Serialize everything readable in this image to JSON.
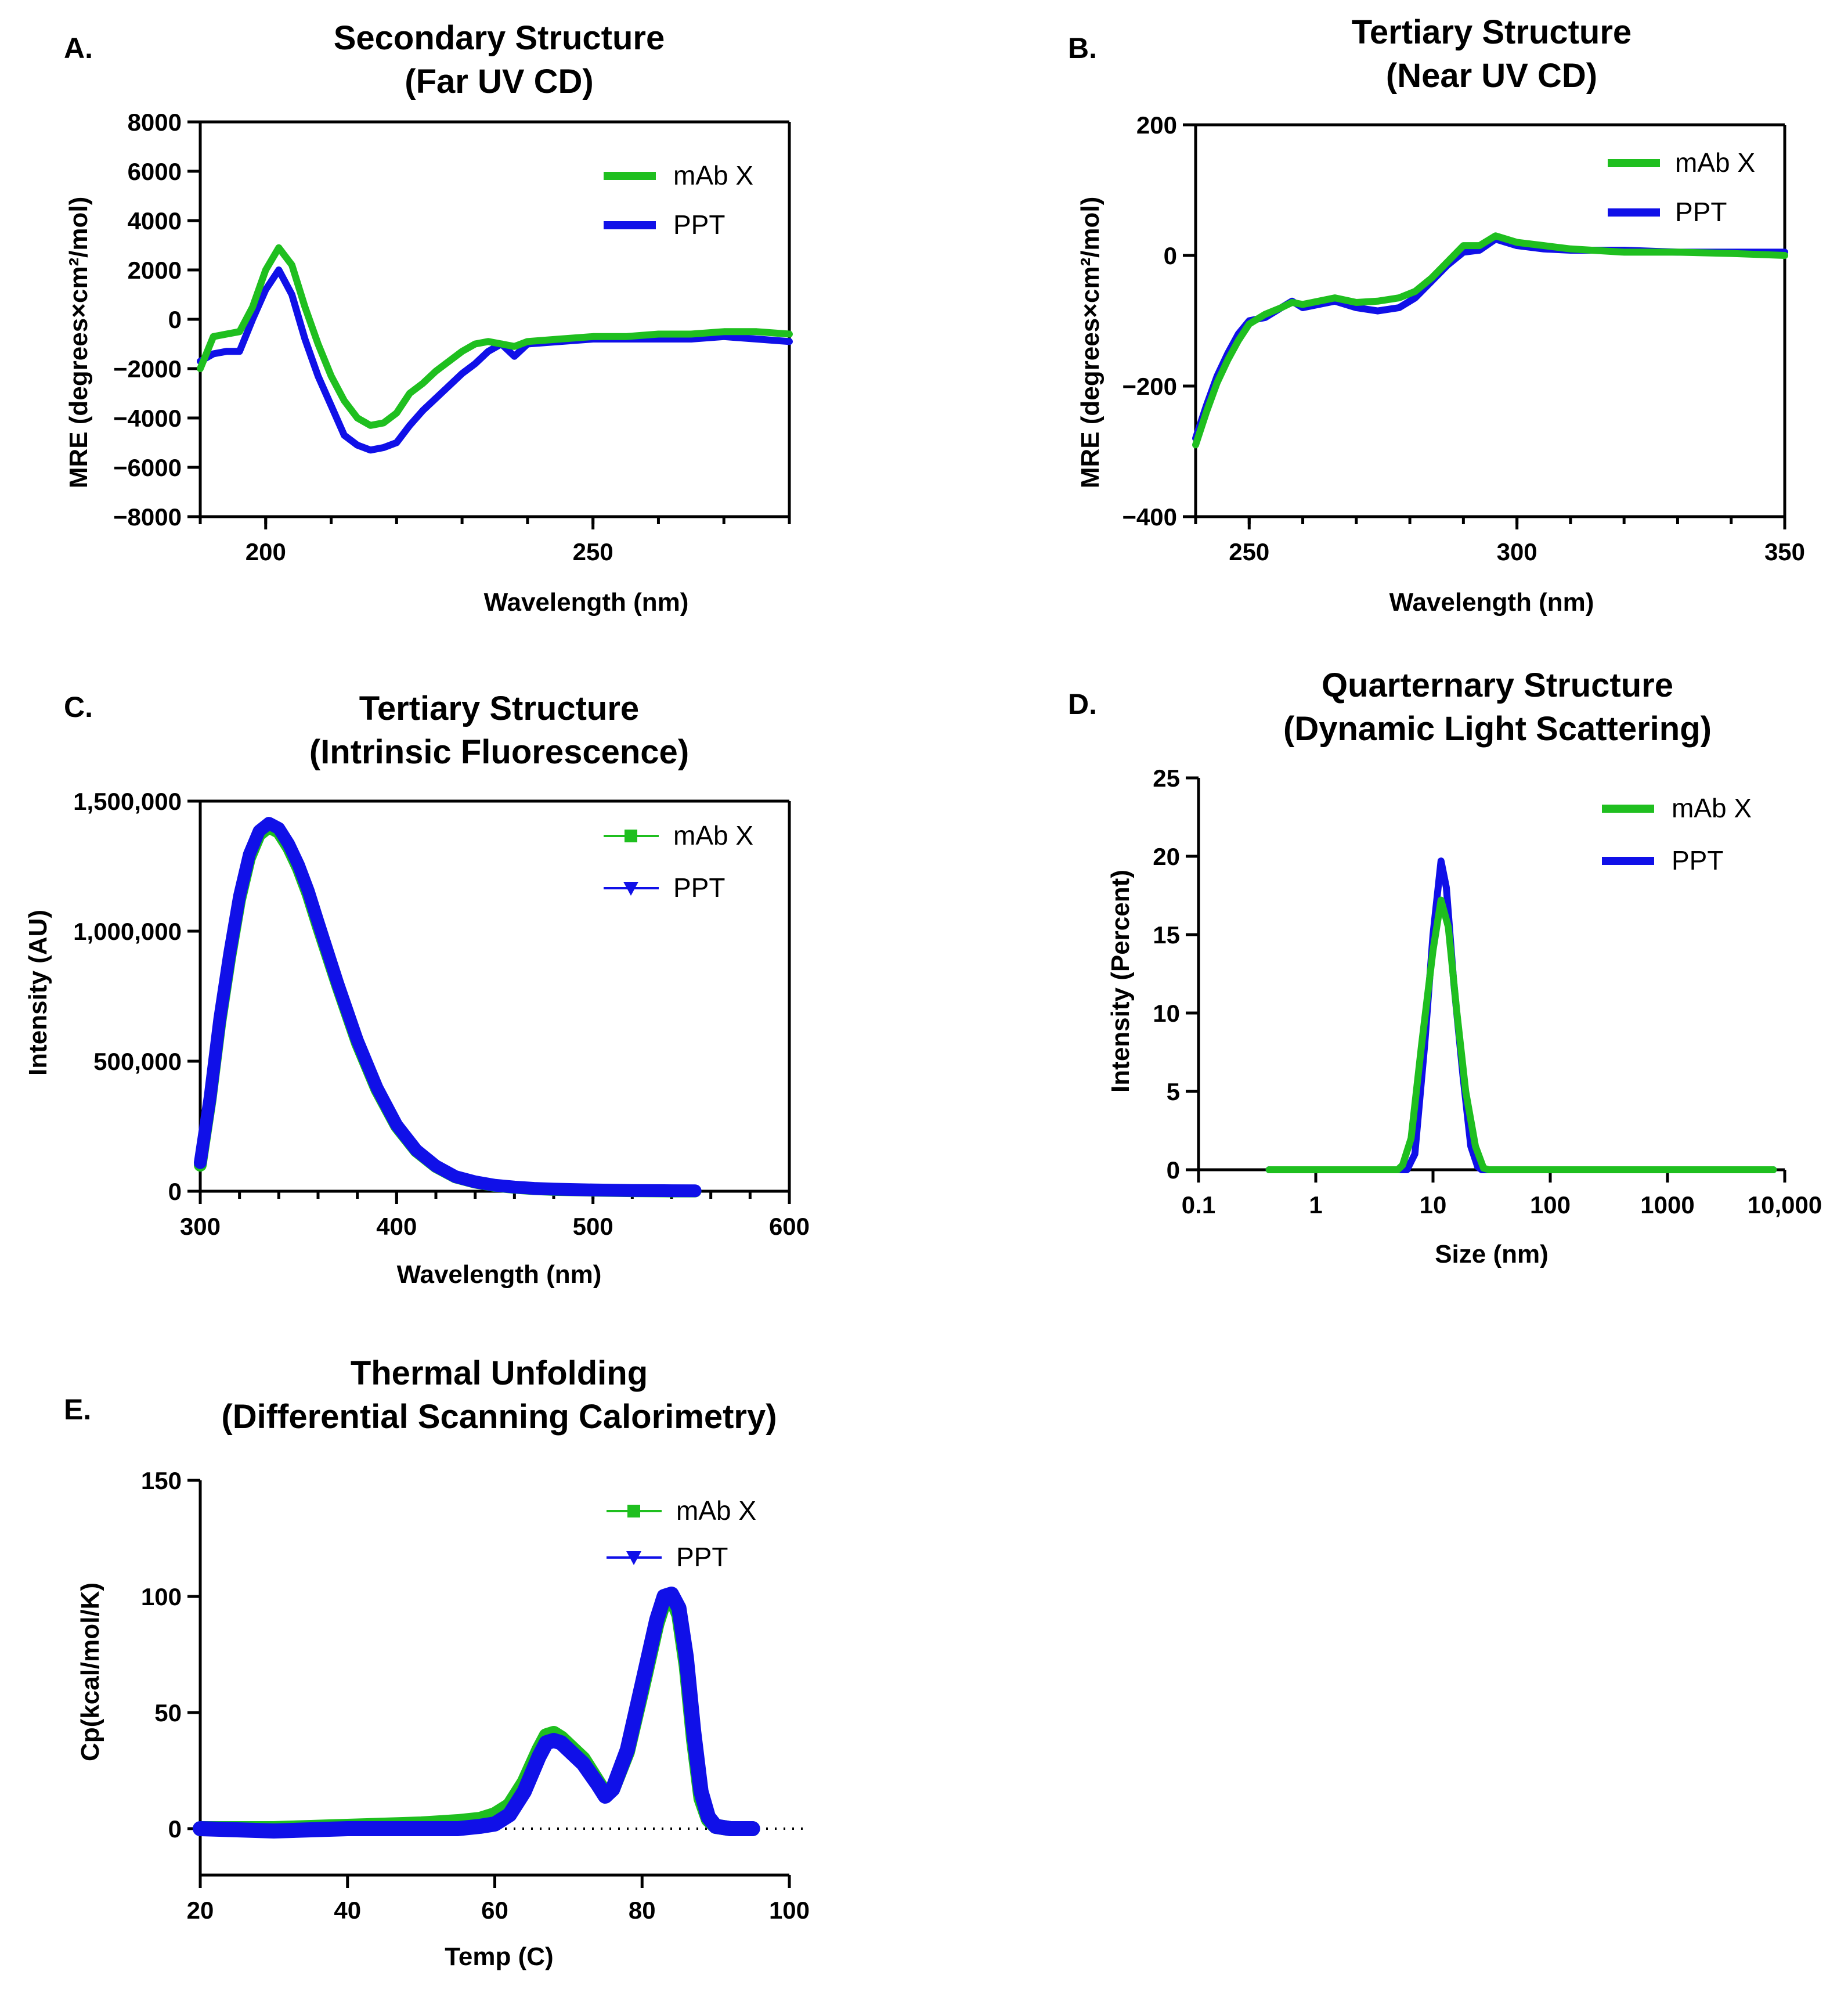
{
  "colors": {
    "mab": "#1fbf1f",
    "ppt": "#1010e8"
  },
  "panels": [
    {
      "label": "A.",
      "title": [
        "Secondary  Structure",
        "(Far UV CD)"
      ],
      "xlabel": "Wavelength (nm)",
      "ylabel": "MRE (degrees×cm²/mol)",
      "legend": [
        "mAb X",
        "PPT"
      ]
    },
    {
      "label": "B.",
      "title": [
        "Tertiary Structure",
        "(Near UV  CD)"
      ],
      "xlabel": "Wavelength (nm)",
      "ylabel": "MRE (degrees×cm²/mol)",
      "legend": [
        "mAb X",
        "PPT"
      ]
    },
    {
      "label": "C.",
      "title": [
        "Tertiary Structure",
        "(Intrinsic Fluorescence)"
      ],
      "xlabel": "Wavelength (nm)",
      "ylabel": "Intensity  (AU)",
      "legend": [
        "mAb X",
        "PPT"
      ]
    },
    {
      "label": "D.",
      "title": [
        "Quarternary  Structure",
        "(Dynamic Light Scattering)"
      ],
      "xlabel": "Size (nm)",
      "ylabel": "Intensity (Percent)",
      "legend": [
        "mAb X",
        "PPT"
      ]
    },
    {
      "label": "E.",
      "title": [
        "Thermal  Unfolding",
        "(Differential  Scanning  Calorimetry)"
      ],
      "xlabel": "Temp (C)",
      "ylabel": "Cp(kcal/mol/K)",
      "legend": [
        "mAb X",
        "PPT"
      ]
    }
  ],
  "chart_data": [
    {
      "type": "line",
      "panel": "A",
      "xlim": [
        190,
        280
      ],
      "ylim": [
        -8000,
        8000
      ],
      "xticks": [
        "200",
        "250"
      ],
      "xtick_values": [
        200,
        250
      ],
      "yticks": [
        "8000",
        "6000",
        "4000",
        "2000",
        "0",
        "−2000",
        "−4000",
        "−6000",
        "−8000"
      ],
      "ytick_values": [
        8000,
        6000,
        4000,
        2000,
        0,
        -2000,
        -4000,
        -6000,
        -8000
      ],
      "series": [
        {
          "name": "mAb X",
          "x": [
            190,
            192,
            194,
            196,
            198,
            200,
            202,
            204,
            206,
            208,
            210,
            212,
            214,
            216,
            218,
            220,
            222,
            224,
            226,
            228,
            230,
            232,
            234,
            236,
            238,
            240,
            245,
            250,
            255,
            260,
            265,
            270,
            275,
            280
          ],
          "y": [
            -2000,
            -700,
            -600,
            -500,
            500,
            2000,
            2900,
            2200,
            500,
            -1000,
            -2300,
            -3300,
            -4000,
            -4300,
            -4200,
            -3800,
            -3000,
            -2600,
            -2100,
            -1700,
            -1300,
            -1000,
            -900,
            -1000,
            -1100,
            -900,
            -800,
            -700,
            -700,
            -600,
            -600,
            -500,
            -500,
            -600
          ]
        },
        {
          "name": "PPT",
          "x": [
            190,
            192,
            194,
            196,
            198,
            200,
            202,
            204,
            206,
            208,
            210,
            212,
            214,
            216,
            218,
            220,
            222,
            224,
            226,
            228,
            230,
            232,
            234,
            236,
            238,
            240,
            245,
            250,
            255,
            260,
            265,
            270,
            275,
            280
          ],
          "y": [
            -1700,
            -1400,
            -1300,
            -1300,
            0,
            1200,
            2000,
            1000,
            -800,
            -2300,
            -3500,
            -4700,
            -5100,
            -5300,
            -5200,
            -5000,
            -4300,
            -3700,
            -3200,
            -2700,
            -2200,
            -1800,
            -1300,
            -1000,
            -1500,
            -1000,
            -900,
            -800,
            -800,
            -800,
            -800,
            -700,
            -800,
            -900
          ]
        }
      ]
    },
    {
      "type": "line",
      "panel": "B",
      "xlim": [
        240,
        350
      ],
      "ylim": [
        -400,
        200
      ],
      "xticks": [
        "250",
        "300",
        "350"
      ],
      "xtick_values": [
        250,
        300,
        350
      ],
      "yticks": [
        "200",
        "0",
        "−200",
        "−400"
      ],
      "ytick_values": [
        200,
        0,
        -200,
        -400
      ],
      "series": [
        {
          "name": "mAb X",
          "x": [
            240,
            242,
            244,
            246,
            248,
            250,
            253,
            256,
            258,
            260,
            263,
            266,
            270,
            274,
            278,
            281,
            284,
            287,
            290,
            293,
            296,
            300,
            305,
            310,
            320,
            330,
            340,
            350
          ],
          "y": [
            -290,
            -240,
            -195,
            -160,
            -130,
            -105,
            -90,
            -80,
            -72,
            -75,
            -70,
            -65,
            -72,
            -70,
            -65,
            -55,
            -35,
            -10,
            15,
            15,
            30,
            20,
            15,
            10,
            5,
            5,
            3,
            0
          ]
        },
        {
          "name": "PPT",
          "x": [
            240,
            242,
            244,
            246,
            248,
            250,
            253,
            256,
            258,
            260,
            263,
            266,
            270,
            274,
            278,
            281,
            284,
            287,
            290,
            293,
            296,
            300,
            305,
            310,
            320,
            330,
            340,
            350
          ],
          "y": [
            -280,
            -230,
            -185,
            -150,
            -120,
            -100,
            -95,
            -80,
            -70,
            -80,
            -75,
            -70,
            -80,
            -85,
            -80,
            -65,
            -40,
            -15,
            5,
            8,
            25,
            15,
            10,
            8,
            8,
            5,
            5,
            5
          ]
        }
      ]
    },
    {
      "type": "line",
      "panel": "C",
      "xlim": [
        300,
        600
      ],
      "ylim": [
        0,
        1500000
      ],
      "xticks": [
        "300",
        "400",
        "500",
        "600"
      ],
      "xtick_values": [
        300,
        400,
        500,
        600
      ],
      "yticks": [
        "1,500,000",
        "1,000,000",
        "500,000",
        "0"
      ],
      "ytick_values": [
        1500000,
        1000000,
        500000,
        0
      ],
      "series": [
        {
          "name": "mAb X",
          "x": [
            300,
            305,
            310,
            315,
            320,
            325,
            330,
            335,
            340,
            345,
            350,
            355,
            360,
            370,
            380,
            390,
            400,
            410,
            420,
            430,
            440,
            450,
            460,
            470,
            480,
            500,
            520,
            540,
            552
          ],
          "y": [
            100000,
            350000,
            650000,
            900000,
            1120000,
            1280000,
            1370000,
            1400000,
            1380000,
            1320000,
            1240000,
            1140000,
            1020000,
            790000,
            570000,
            390000,
            250000,
            155000,
            95000,
            55000,
            35000,
            22000,
            15000,
            10000,
            7000,
            4000,
            2000,
            1000,
            1000
          ]
        },
        {
          "name": "PPT",
          "x": [
            300,
            305,
            310,
            315,
            320,
            325,
            330,
            335,
            340,
            345,
            350,
            355,
            360,
            370,
            380,
            390,
            400,
            410,
            420,
            430,
            440,
            450,
            460,
            470,
            480,
            500,
            520,
            540,
            552
          ],
          "y": [
            110000,
            360000,
            665000,
            915000,
            1135000,
            1295000,
            1385000,
            1415000,
            1395000,
            1335000,
            1255000,
            1155000,
            1035000,
            800000,
            580000,
            398000,
            255000,
            158000,
            97000,
            56000,
            36000,
            23000,
            16000,
            11000,
            8000,
            5000,
            3000,
            2000,
            1500
          ]
        }
      ]
    },
    {
      "type": "line",
      "panel": "D",
      "log_x": true,
      "xlim": [
        0.1,
        10000
      ],
      "ylim": [
        0,
        25
      ],
      "xticks": [
        "0.1",
        "1",
        "10",
        "100",
        "1000",
        "10,000"
      ],
      "xtick_values": [
        0.1,
        1,
        10,
        100,
        1000,
        10000
      ],
      "yticks": [
        "25",
        "20",
        "15",
        "10",
        "5",
        "0"
      ],
      "ytick_values": [
        25,
        20,
        15,
        10,
        5,
        0
      ],
      "series": [
        {
          "name": "mAb X",
          "x": [
            0.4,
            1,
            3,
            5,
            5.5,
            6.5,
            8,
            10,
            11.7,
            13.5,
            16,
            19,
            23,
            27,
            30,
            100,
            1000,
            8000
          ],
          "y": [
            0,
            0,
            0,
            0,
            0.3,
            2,
            8,
            14,
            17.2,
            15.5,
            10,
            5,
            1.5,
            0.1,
            0,
            0,
            0,
            0
          ]
        },
        {
          "name": "PPT",
          "x": [
            0.4,
            1,
            3,
            5,
            6,
            7,
            8.5,
            10,
            11.7,
            13,
            15,
            18,
            21,
            24,
            26,
            100,
            1000,
            8000
          ],
          "y": [
            0,
            0,
            0,
            0,
            0,
            1,
            8,
            15,
            19.7,
            18,
            12,
            6,
            1.5,
            0.2,
            0,
            0,
            0,
            0
          ]
        }
      ]
    },
    {
      "type": "line",
      "panel": "E",
      "xlim": [
        20,
        100
      ],
      "ylim": [
        -20,
        150
      ],
      "xticks": [
        "20",
        "40",
        "60",
        "80",
        "100"
      ],
      "xtick_values": [
        20,
        40,
        60,
        80,
        100
      ],
      "yticks": [
        "150",
        "100",
        "50",
        "0"
      ],
      "ytick_values": [
        150,
        100,
        50,
        0
      ],
      "baseline": 0,
      "series": [
        {
          "name": "mAb X",
          "x": [
            20,
            30,
            40,
            50,
            55,
            58,
            60,
            62,
            64,
            66,
            67,
            68,
            69,
            70,
            72,
            74,
            75,
            76,
            78,
            80,
            82,
            83,
            84,
            85,
            86,
            87,
            88,
            89,
            90,
            92,
            95
          ],
          "y": [
            0,
            0,
            1,
            2,
            3,
            4,
            6,
            10,
            20,
            34,
            40,
            41,
            39,
            36,
            30,
            20,
            15,
            17,
            33,
            60,
            88,
            98,
            100,
            92,
            70,
            38,
            13,
            4,
            1,
            0,
            0
          ]
        },
        {
          "name": "PPT",
          "x": [
            20,
            30,
            40,
            50,
            55,
            58,
            60,
            62,
            64,
            66,
            67,
            68,
            69,
            70,
            72,
            74,
            75,
            76,
            78,
            80,
            82,
            83,
            84,
            85,
            86,
            87,
            88,
            89,
            90,
            92,
            95
          ],
          "y": [
            0,
            -1,
            0,
            0,
            0,
            1,
            2,
            6,
            16,
            31,
            37,
            38,
            37,
            34,
            28,
            19,
            14,
            17,
            34,
            62,
            90,
            100,
            101,
            95,
            74,
            42,
            16,
            5,
            1,
            0,
            0
          ]
        }
      ]
    }
  ]
}
